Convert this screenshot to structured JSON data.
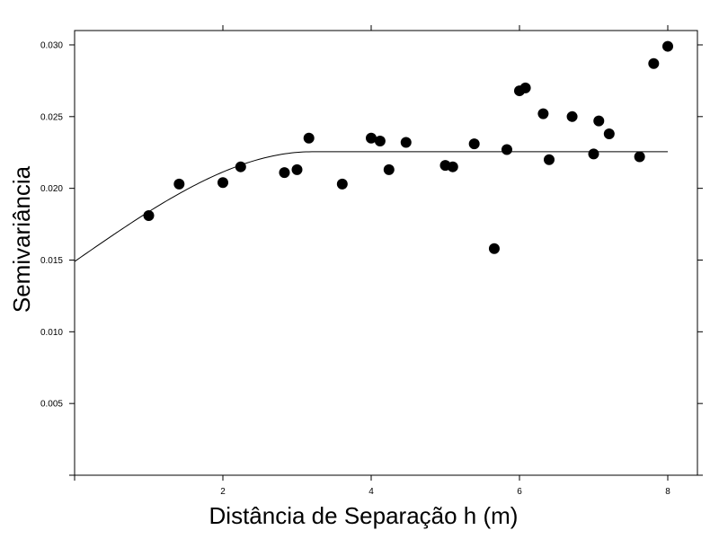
{
  "chart_data": {
    "type": "scatter",
    "title": "",
    "xlabel": "Distância de Separação h (m)",
    "ylabel": "Semivariância",
    "xlim": [
      0,
      8.4
    ],
    "ylim": [
      0,
      0.031
    ],
    "x_ticks": [
      {
        "value": 2,
        "label": "2"
      },
      {
        "value": 4,
        "label": "4"
      },
      {
        "value": 6,
        "label": "6"
      },
      {
        "value": 8,
        "label": "8"
      }
    ],
    "y_ticks": [
      {
        "value": 0.005,
        "label": "0.005"
      },
      {
        "value": 0.01,
        "label": "0.010"
      },
      {
        "value": 0.015,
        "label": "0.015"
      },
      {
        "value": 0.02,
        "label": "0.020"
      },
      {
        "value": 0.025,
        "label": "0.025"
      },
      {
        "value": 0.03,
        "label": "0.030"
      }
    ],
    "grid": false,
    "points": [
      {
        "x": 1.0,
        "y": 0.0181
      },
      {
        "x": 1.41,
        "y": 0.0203
      },
      {
        "x": 2.0,
        "y": 0.0204
      },
      {
        "x": 2.24,
        "y": 0.0215
      },
      {
        "x": 2.83,
        "y": 0.0211
      },
      {
        "x": 3.0,
        "y": 0.0213
      },
      {
        "x": 3.16,
        "y": 0.0235
      },
      {
        "x": 3.61,
        "y": 0.0203
      },
      {
        "x": 4.0,
        "y": 0.0235
      },
      {
        "x": 4.12,
        "y": 0.0233
      },
      {
        "x": 4.24,
        "y": 0.0213
      },
      {
        "x": 4.47,
        "y": 0.0232
      },
      {
        "x": 5.0,
        "y": 0.0216
      },
      {
        "x": 5.1,
        "y": 0.0215
      },
      {
        "x": 5.39,
        "y": 0.0231
      },
      {
        "x": 5.66,
        "y": 0.0158
      },
      {
        "x": 5.83,
        "y": 0.0227
      },
      {
        "x": 6.0,
        "y": 0.0268
      },
      {
        "x": 6.08,
        "y": 0.027
      },
      {
        "x": 6.32,
        "y": 0.0252
      },
      {
        "x": 6.4,
        "y": 0.022
      },
      {
        "x": 6.71,
        "y": 0.025
      },
      {
        "x": 7.0,
        "y": 0.0224
      },
      {
        "x": 7.07,
        "y": 0.0247
      },
      {
        "x": 7.21,
        "y": 0.0238
      },
      {
        "x": 7.62,
        "y": 0.0222
      },
      {
        "x": 7.81,
        "y": 0.0287
      },
      {
        "x": 8.0,
        "y": 0.0299
      }
    ],
    "fitted_model": {
      "type": "spherical",
      "nugget": 0.0149,
      "sill": 0.02255,
      "range": 3.2,
      "x_end": 8.0
    },
    "colors": {
      "points": "#000000",
      "line": "#000000",
      "axes": "#000000"
    }
  }
}
